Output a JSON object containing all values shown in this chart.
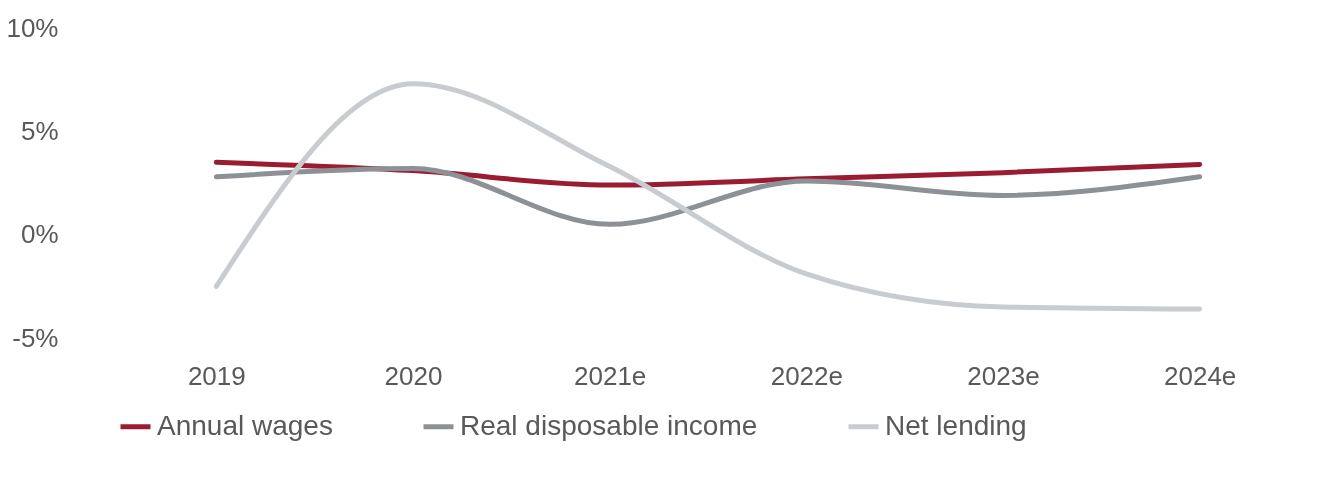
{
  "chart_data": {
    "type": "line",
    "categories": [
      "2019",
      "2020",
      "2021e",
      "2022e",
      "2023e",
      "2024e"
    ],
    "series": [
      {
        "name": "Annual wages",
        "color": "#9b1b30",
        "values": [
          3.5,
          3.1,
          2.4,
          2.7,
          3.0,
          3.4
        ]
      },
      {
        "name": "Real disposable income",
        "color": "#8c9196",
        "values": [
          2.8,
          3.2,
          0.5,
          2.6,
          1.9,
          2.8
        ]
      },
      {
        "name": "Net lending",
        "color": "#c8ccd0",
        "values": [
          -2.5,
          7.3,
          3.3,
          -1.9,
          -3.5,
          -3.6
        ]
      }
    ],
    "ylim": [
      -5,
      10
    ],
    "yticks": [
      {
        "value": -5,
        "label": "-5%"
      },
      {
        "value": 0,
        "label": "0%"
      },
      {
        "value": 5,
        "label": "5%"
      },
      {
        "value": 10,
        "label": "10%"
      }
    ],
    "grid": false,
    "legend": "bottom",
    "marker": "none",
    "line_style": "solid"
  }
}
